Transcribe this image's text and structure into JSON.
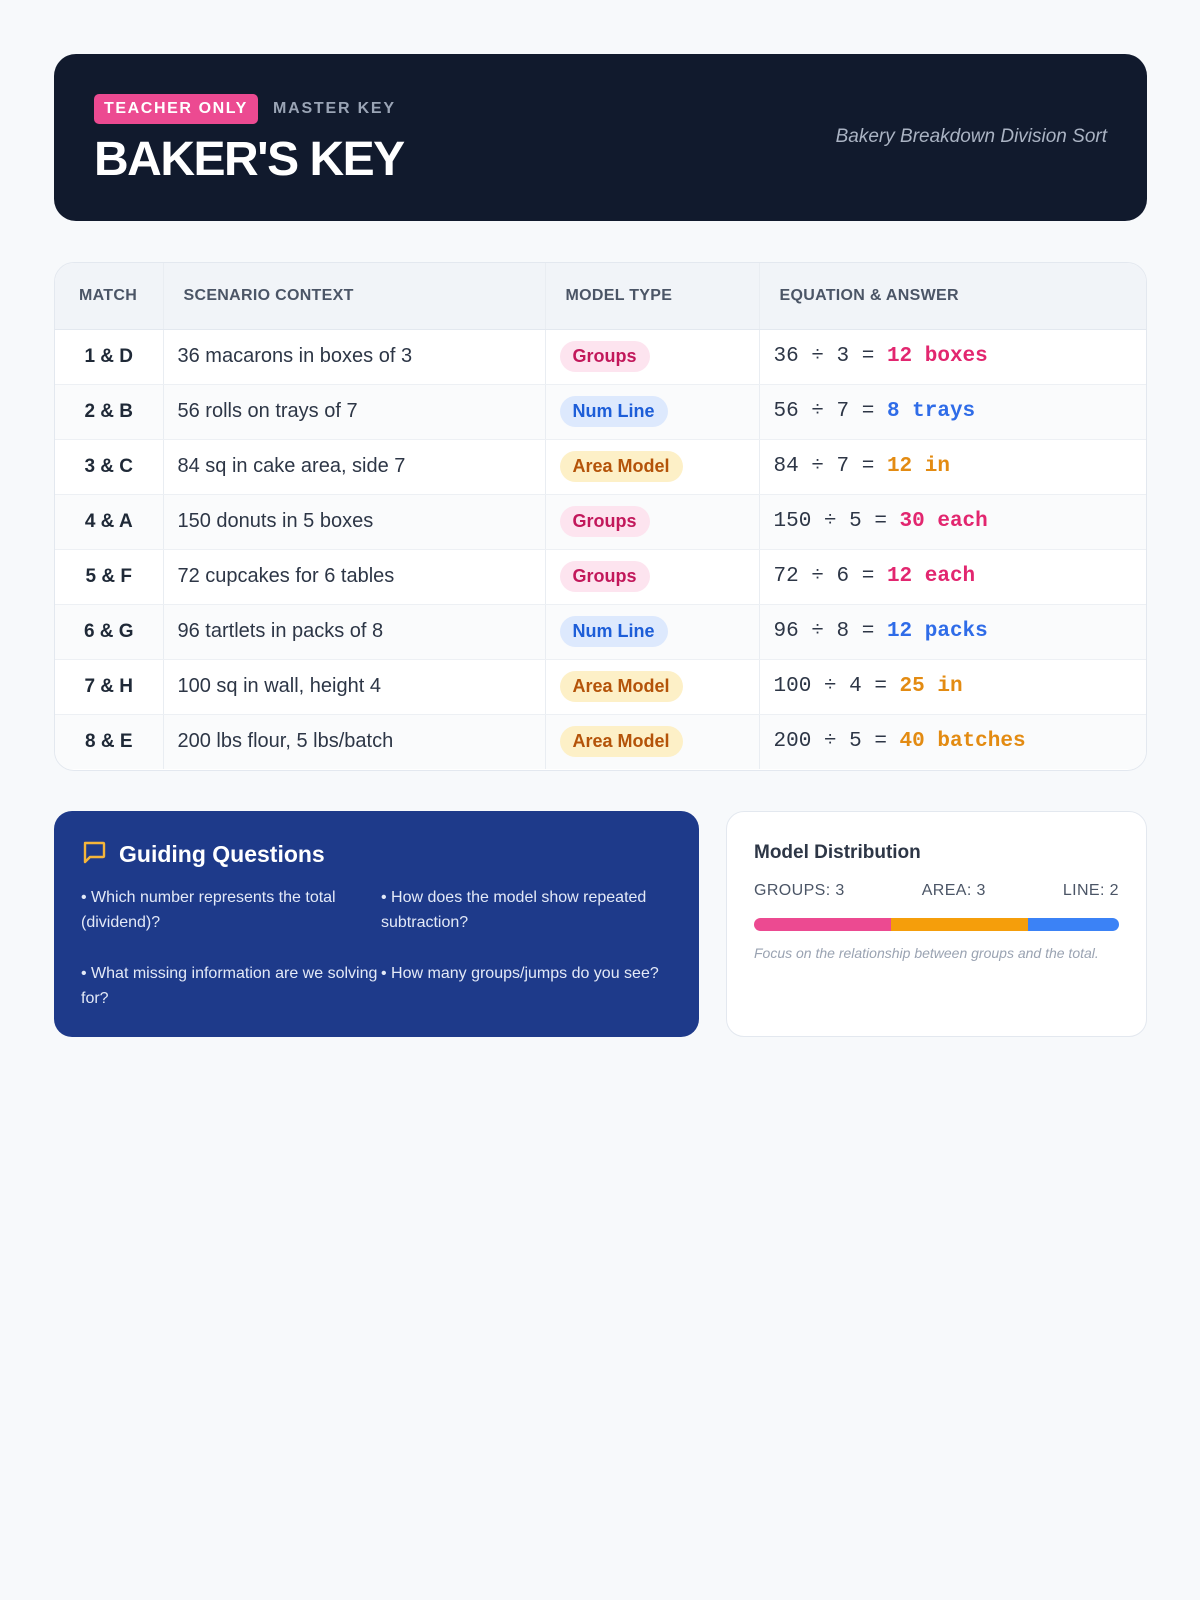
{
  "header": {
    "badge": "TEACHER ONLY",
    "label": "MASTER KEY",
    "title": "BAKER'S KEY",
    "subtitle": "Bakery Breakdown Division Sort"
  },
  "table": {
    "columns": [
      "MATCH",
      "SCENARIO CONTEXT",
      "MODEL TYPE",
      "EQUATION & ANSWER"
    ],
    "rows": [
      {
        "match": "1 & D",
        "context": "36 macarons in boxes of 3",
        "model": "Groups",
        "equation": "36 ÷ 3 =",
        "answer": "12 boxes"
      },
      {
        "match": "2 & B",
        "context": "56 rolls on trays of 7",
        "model": "Num Line",
        "equation": "56 ÷ 7 =",
        "answer": "8 trays"
      },
      {
        "match": "3 & C",
        "context": "84 sq in cake area, side 7",
        "model": "Area Model",
        "equation": "84 ÷ 7 =",
        "answer": "12 in"
      },
      {
        "match": "4 & A",
        "context": "150 donuts in 5 boxes",
        "model": "Groups",
        "equation": "150 ÷ 5 =",
        "answer": "30 each"
      },
      {
        "match": "5 & F",
        "context": "72 cupcakes for 6 tables",
        "model": "Groups",
        "equation": "72 ÷ 6 =",
        "answer": "12 each"
      },
      {
        "match": "6 & G",
        "context": "96 tartlets in packs of 8",
        "model": "Num Line",
        "equation": "96 ÷ 8 =",
        "answer": "12 packs"
      },
      {
        "match": "7 & H",
        "context": "100 sq in wall, height 4",
        "model": "Area Model",
        "equation": "100 ÷ 4 =",
        "answer": "25 in"
      },
      {
        "match": "8 & E",
        "context": "200 lbs flour, 5 lbs/batch",
        "model": "Area Model",
        "equation": "200 ÷ 5 =",
        "answer": "40 batches"
      }
    ]
  },
  "guide": {
    "icon": "chat-bubble-icon",
    "title": "Guiding Questions",
    "questions": [
      "• Which number represents the total (dividend)?",
      "• How does the model show repeated subtraction?",
      "• What missing information are we solving for?",
      "• How many groups/jumps do you see?"
    ]
  },
  "distribution": {
    "title": "Model Distribution",
    "labels": {
      "groups": "GROUPS: 3",
      "area": "AREA: 3",
      "line": "LINE: 2"
    },
    "counts": {
      "groups": 3,
      "area": 3,
      "line": 2
    },
    "colors": {
      "groups": "#ec4a91",
      "area": "#f59e0b",
      "line": "#3b82f6"
    },
    "note": "Focus on the relationship between groups and the total."
  }
}
